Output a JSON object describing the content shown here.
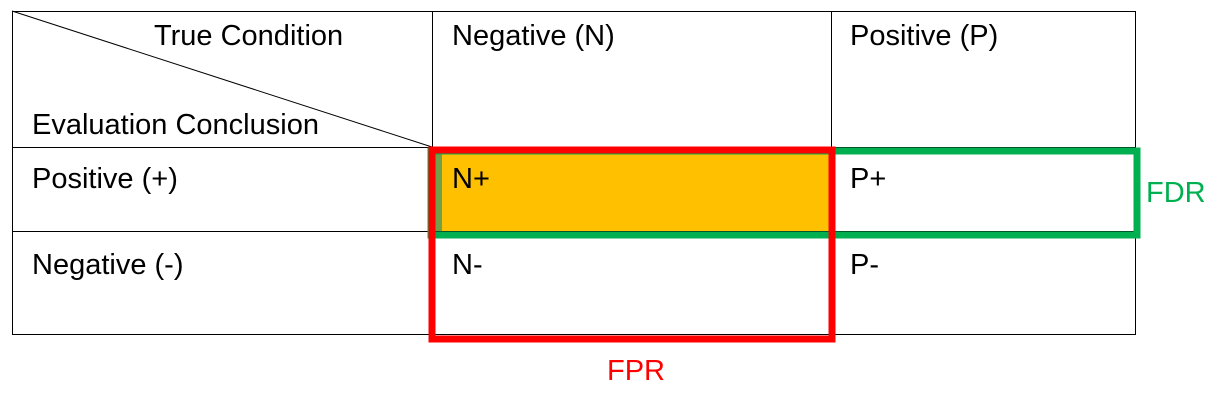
{
  "header": {
    "true_condition": "True Condition",
    "evaluation_conclusion": "Evaluation Conclusion",
    "col_negative": "Negative (N)",
    "col_positive": "Positive (P)"
  },
  "rows": [
    {
      "label": "Positive (+)",
      "cells": [
        "N+",
        "P+"
      ]
    },
    {
      "label": "Negative (-)",
      "cells": [
        "N-",
        "P-"
      ]
    }
  ],
  "highlights": {
    "fdr": {
      "label": "FDR",
      "color": "#00B050"
    },
    "fpr": {
      "label": "FPR",
      "color": "#FF0000"
    },
    "fill_color": "#FFC000"
  }
}
